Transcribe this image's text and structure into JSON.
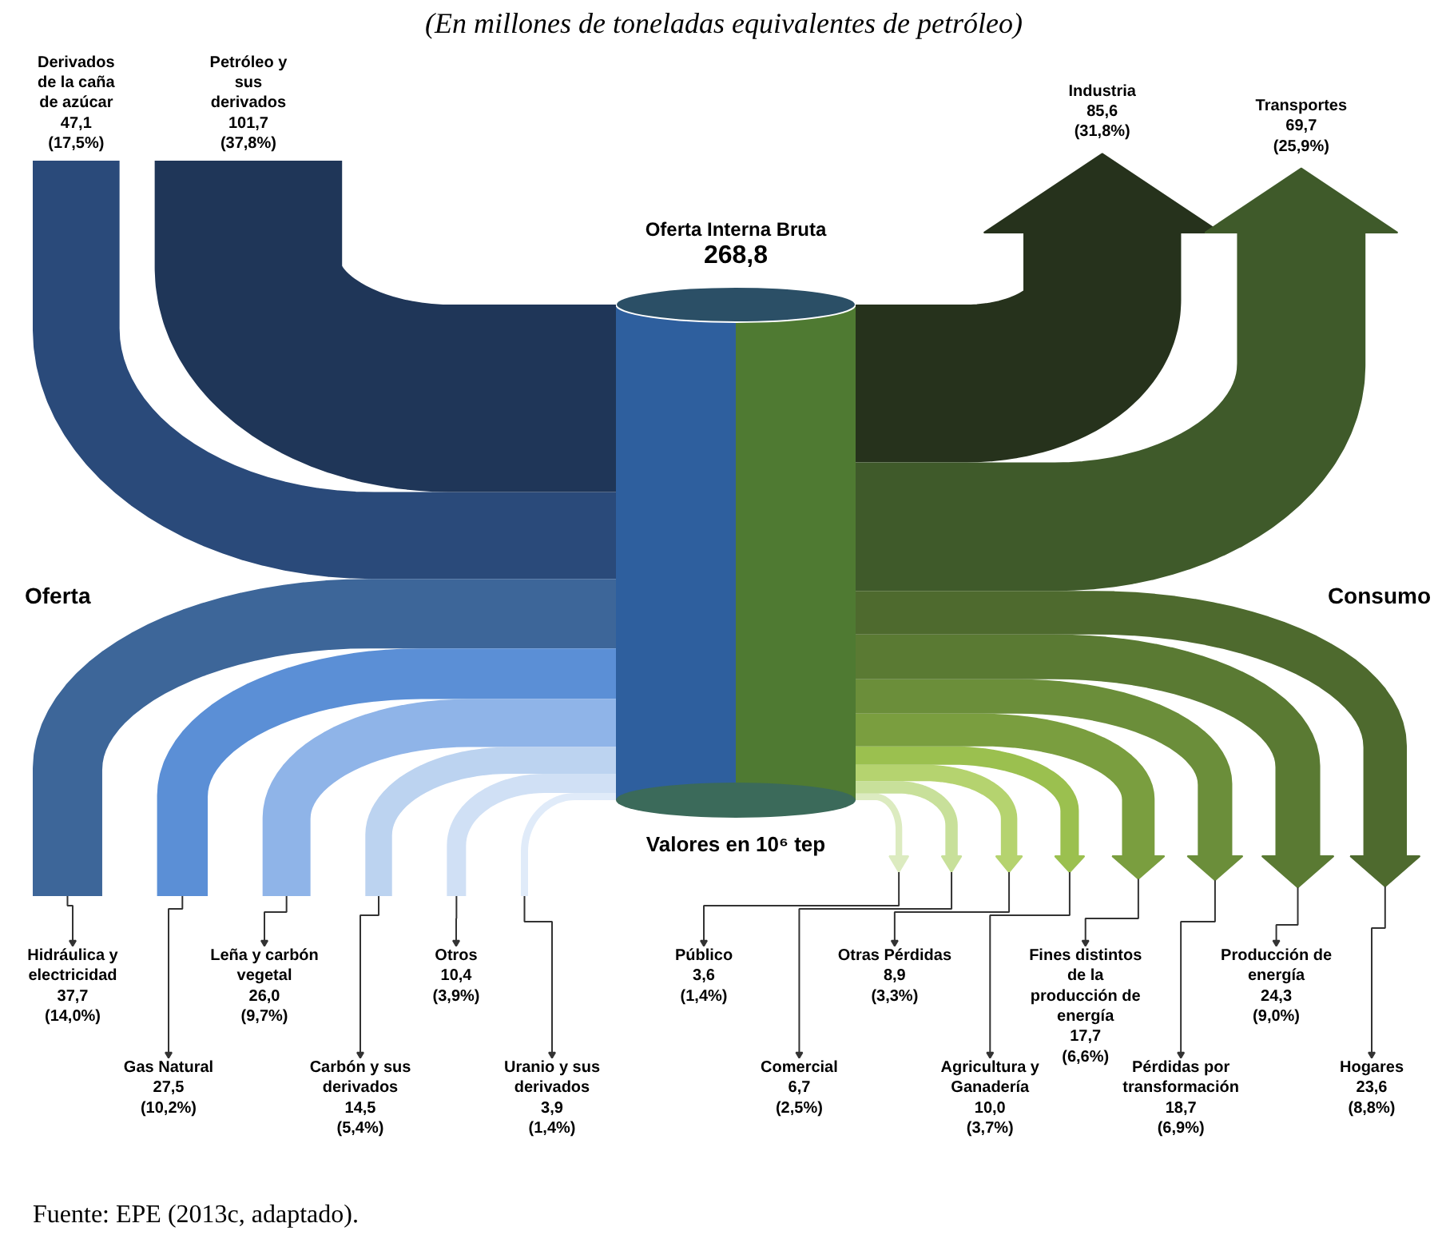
{
  "chart_data": {
    "type": "other",
    "title": "(En millones de toneladas equivalentes de petróleo)",
    "categories": [
      "Derivados de la caña de azúcar",
      "Petróleo y sus derivados",
      "Hidráulica y electricidad",
      "Gas Natural",
      "Leña y carbón vegetal",
      "Carbón y sus derivados",
      "Otros",
      "Uranio y sus derivados",
      "Industria",
      "Transportes",
      "Público",
      "Comercial",
      "Otras Pérdidas",
      "Agricultura y Ganadería",
      "Fines distintos de la producción de energía",
      "Pérdidas por transformación",
      "Producción de energía",
      "Hogares"
    ],
    "values": [
      47.1,
      101.7,
      37.7,
      27.5,
      26.0,
      14.5,
      10.4,
      3.9,
      85.6,
      69.7,
      3.6,
      6.7,
      8.9,
      10.0,
      17.7,
      18.7,
      24.3,
      23.6
    ],
    "value_labels": [
      "47,1 (17,5%)",
      "101,7 (37,8%)",
      "37,7 (14,0%)",
      "27,5 (10,2%)",
      "26,0 (9,7%)",
      "14,5 (5,4%)",
      "10,4 (3,9%)",
      "3,9 (1,4%)",
      "85,6 (31,8%)",
      "69,7 (25,9%)",
      "3,6 (1,4%)",
      "6,7 (2,5%)",
      "8,9 (3,3%)",
      "10,0 (3,7%)",
      "17,7 (6,6%)",
      "18,7 (6,9%)",
      "24,3 (9,0%)",
      "23,6 (8,8%)"
    ],
    "colors": [
      "#2a4a7a",
      "#1f3658",
      "#3d6699",
      "#5b8fd6",
      "#8fb4e8",
      "#bcd3f0",
      "#d0e0f5",
      "#e0ebf9",
      "#26321c",
      "#3f5a2a",
      "#dcebc0",
      "#c8e09a",
      "#b5d36f",
      "#9bc04f",
      "#7a9e3f",
      "#6b8e3a",
      "#5a7a33",
      "#4e6a2e"
    ],
    "annotations": [
      "Oferta",
      "Consumo",
      "Oferta Interna Bruta",
      "268,8",
      "Valores en 10⁶ tep",
      "Fuente: EPE (2013c, adaptado)."
    ]
  }
}
